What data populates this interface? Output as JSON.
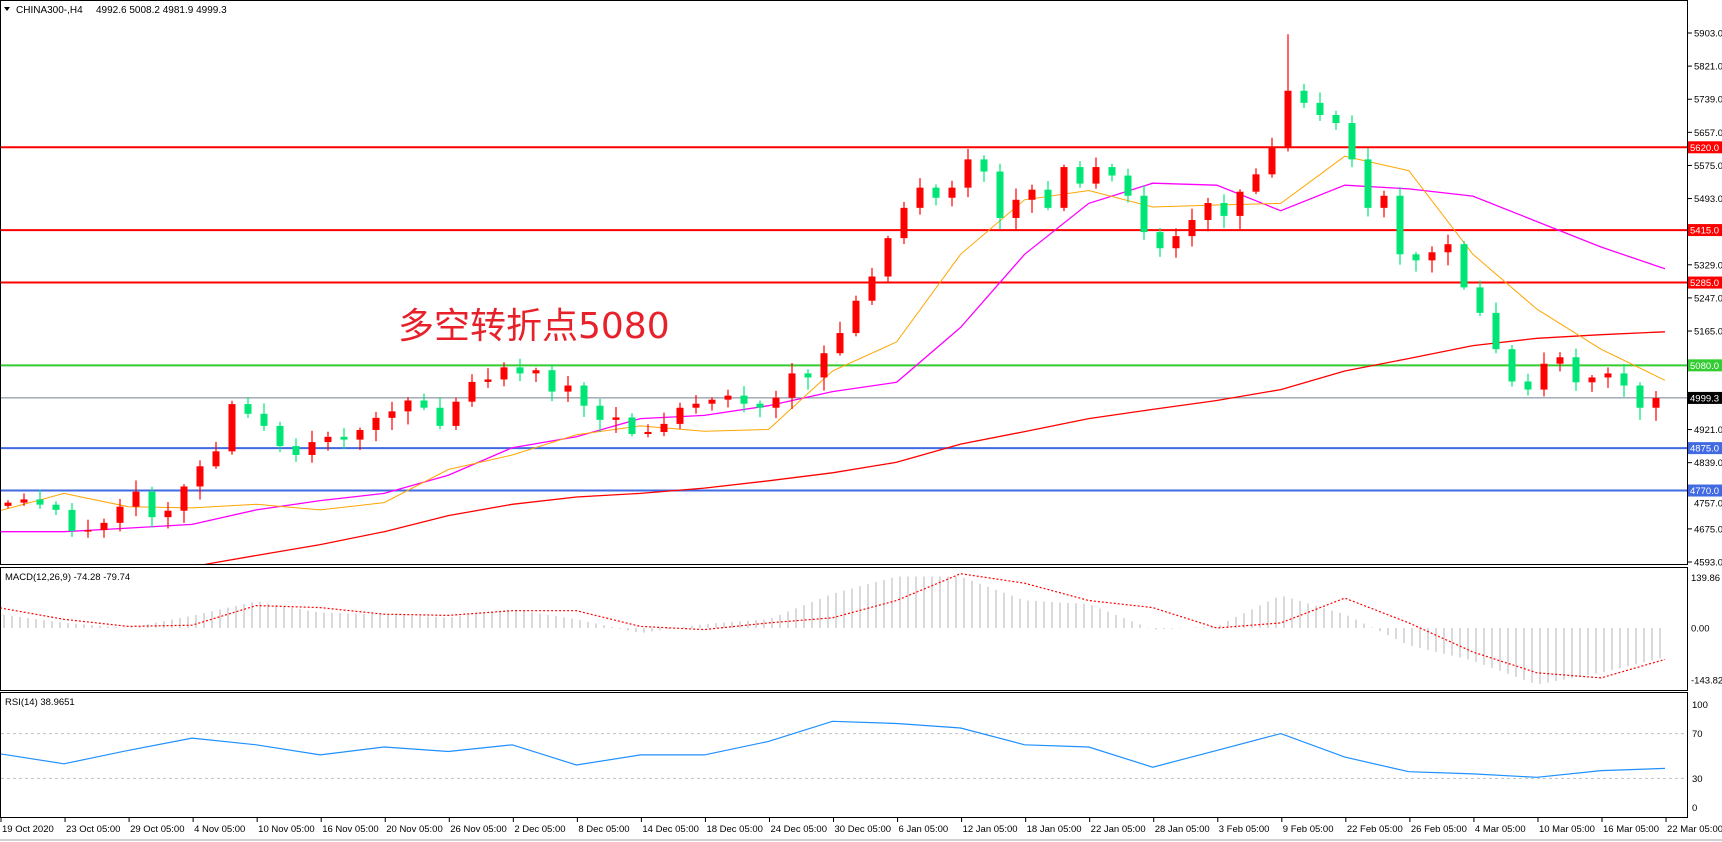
{
  "header": {
    "symbol": "CHINA300-,H4",
    "ohlc": "4992.6 5008.2 4981.9 4999.3"
  },
  "annotation": "多空转折点5080",
  "colors": {
    "up_candle": "#ff0000",
    "down_candle": "#00e676",
    "ma_fast": "#ffa500",
    "ma_mid": "#ff00ff",
    "ma_slow": "#ff0000",
    "macd_hist": "#c0c0c0",
    "macd_signal": "#ff0000",
    "rsi": "#1e90ff",
    "resistance": "#ff0000",
    "pivot": "#33cc33",
    "support": "#4169e1",
    "current_price": "#708090"
  },
  "chart_data": [
    {
      "type": "candlestick",
      "title": "CHINA300-,H4",
      "price_axis_ticks": [
        "5903.0",
        "5821.0",
        "5739.0",
        "5657.0",
        "5575.0",
        "5493.0",
        "5329.0",
        "5247.0",
        "5165.0",
        "4921.0",
        "4839.0",
        "4757.0",
        "4675.0",
        "4593.0"
      ],
      "ylim": [
        4593,
        5903
      ],
      "time_axis_ticks": [
        "19 Oct 2020",
        "23 Oct 05:00",
        "29 Oct 05:00",
        "4 Nov 05:00",
        "10 Nov 05:00",
        "16 Nov 05:00",
        "20 Nov 05:00",
        "26 Nov 05:00",
        "2 Dec 05:00",
        "8 Dec 05:00",
        "14 Dec 05:00",
        "18 Dec 05:00",
        "24 Dec 05:00",
        "30 Dec 05:00",
        "6 Jan 05:00",
        "12 Jan 05:00",
        "18 Jan 05:00",
        "22 Jan 05:00",
        "28 Jan 05:00",
        "3 Feb 05:00",
        "9 Feb 05:00",
        "22 Feb 05:00",
        "26 Feb 05:00",
        "4 Mar 05:00",
        "10 Mar 05:00",
        "16 Mar 05:00",
        "22 Mar 05:00"
      ],
      "closes": [
        4740,
        4748,
        4735,
        4722,
        4670,
        4672,
        4690,
        4730,
        4767,
        4704,
        4720,
        4780,
        4830,
        4867,
        4984,
        4960,
        4930,
        4880,
        4858,
        4890,
        4903,
        4896,
        4920,
        4950,
        4966,
        4993,
        4975,
        4930,
        4990,
        5039,
        5045,
        5075,
        5060,
        5068,
        5015,
        5030,
        4980,
        4945,
        4951,
        4910,
        4915,
        4935,
        4975,
        4985,
        4995,
        5005,
        4985,
        4975,
        5000,
        5060,
        5050,
        5110,
        5160,
        5240,
        5300,
        5395,
        5470,
        5520,
        5495,
        5520,
        5590,
        5560,
        5445,
        5490,
        5515,
        5470,
        5571,
        5530,
        5571,
        5550,
        5500,
        5410,
        5370,
        5400,
        5440,
        5482,
        5450,
        5510,
        5553,
        5620,
        5760,
        5730,
        5700,
        5680,
        5590,
        5470,
        5500,
        5355,
        5340,
        5360,
        5380,
        5273,
        5210,
        5120,
        5040,
        5020,
        5084,
        5100,
        5038,
        5050,
        5060,
        5030,
        4975,
        4999.3
      ],
      "peak_high": 5900,
      "moving_averages": {
        "fast": [
          4720,
          4763,
          4730,
          4727,
          4736,
          4722,
          4740,
          4822,
          4858,
          4908,
          4930,
          4917,
          4921,
          5066,
          5138,
          5355,
          5490,
          5513,
          5472,
          5477,
          5481,
          5598,
          5562,
          5355,
          5219,
          5120,
          5043
        ],
        "mid": [
          4668,
          4668,
          4677,
          4686,
          4722,
          4745,
          4763,
          4808,
          4876,
          4903,
          4948,
          4956,
          4980,
          5015,
          5038,
          5174,
          5355,
          5481,
          5531,
          5526,
          5463,
          5526,
          5517,
          5499,
          5436,
          5373,
          5319
        ],
        "slow": [
          null,
          null,
          null,
          null,
          4609,
          4636,
          4668,
          4708,
          4736,
          4754,
          4763,
          4776,
          4794,
          4814,
          4840,
          4885,
          4916,
          4948,
          4971,
          4993,
          5020,
          5066,
          5097,
          5129,
          5147,
          5156,
          5163
        ]
      },
      "horizontal_levels": [
        {
          "value": 5620.0,
          "label": "5620.0",
          "kind": "resistance"
        },
        {
          "value": 5415.0,
          "label": "5415.0",
          "kind": "resistance"
        },
        {
          "value": 5285.0,
          "label": "5285.0",
          "kind": "resistance"
        },
        {
          "value": 5080.0,
          "label": "5080.0",
          "kind": "pivot"
        },
        {
          "value": 4875.0,
          "label": "4875.0",
          "kind": "support"
        },
        {
          "value": 4770.0,
          "label": "4770.0",
          "kind": "support"
        }
      ],
      "current_price": {
        "value": 4999.3,
        "label": "4999.3"
      }
    },
    {
      "type": "bar",
      "title": "MACD(12,26,9) -74.28 -79.74",
      "ticks": [
        "139.86",
        "0.00",
        "-143.82"
      ],
      "ylim": [
        -143.82,
        139.86
      ],
      "macd": [
        35,
        13,
        0,
        31,
        68,
        39,
        35,
        26,
        48,
        22,
        -13,
        10,
        22,
        87,
        131,
        131,
        70,
        61,
        -4,
        4,
        83,
        35,
        -44,
        -83,
        -144,
        -114,
        -74.28
      ],
      "signal": [
        51,
        22,
        4,
        7,
        57,
        52,
        35,
        32,
        44,
        44,
        4,
        -4,
        13,
        26,
        70,
        138,
        114,
        70,
        52,
        0,
        13,
        76,
        13,
        -61,
        -114,
        -127,
        -79.74
      ]
    },
    {
      "type": "line",
      "title": "RSI(14) 38.9651",
      "ticks": [
        "100",
        "70",
        "30",
        "0"
      ],
      "ylim": [
        0,
        100
      ],
      "levels": [
        70,
        30
      ],
      "values": [
        52,
        43,
        55,
        66,
        60,
        51,
        58,
        54,
        60,
        42,
        51,
        51,
        63,
        81,
        79,
        75,
        60,
        58,
        40,
        55,
        70,
        49,
        36,
        34,
        31,
        37,
        38.9651
      ]
    }
  ]
}
